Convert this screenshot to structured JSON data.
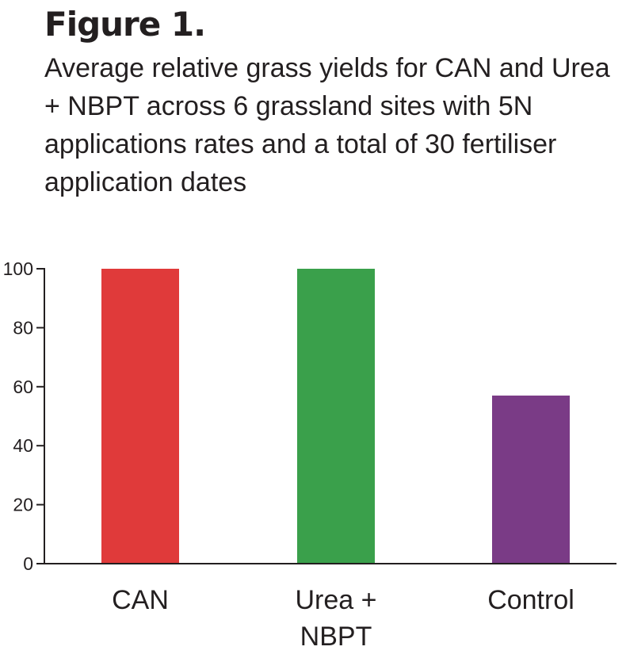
{
  "figure": {
    "title": "Figure 1.",
    "subtitle": "Average relative grass yields for CAN and Urea + NBPT across 6 grassland sites with 5N applications rates and a total of 30 fertiliser application dates"
  },
  "chart_data": {
    "type": "bar",
    "title": "Figure 1.",
    "subtitle": "Average relative grass yields for CAN and Urea + NBPT across 6 grassland sites with 5N applications rates and a total of 30 fertiliser application dates",
    "categories": [
      "CAN",
      "Urea + NBPT",
      "Control"
    ],
    "category_lines": [
      [
        "CAN"
      ],
      [
        "Urea +",
        "NBPT"
      ],
      [
        "Control"
      ]
    ],
    "values": [
      100,
      100,
      57
    ],
    "colors": [
      "#e03a3a",
      "#3aa04b",
      "#7a3b86"
    ],
    "yticks": [
      0,
      20,
      40,
      60,
      80,
      100
    ],
    "ylim": [
      0,
      100
    ],
    "xlabel": "",
    "ylabel": "",
    "grid": false,
    "legend": "none"
  }
}
